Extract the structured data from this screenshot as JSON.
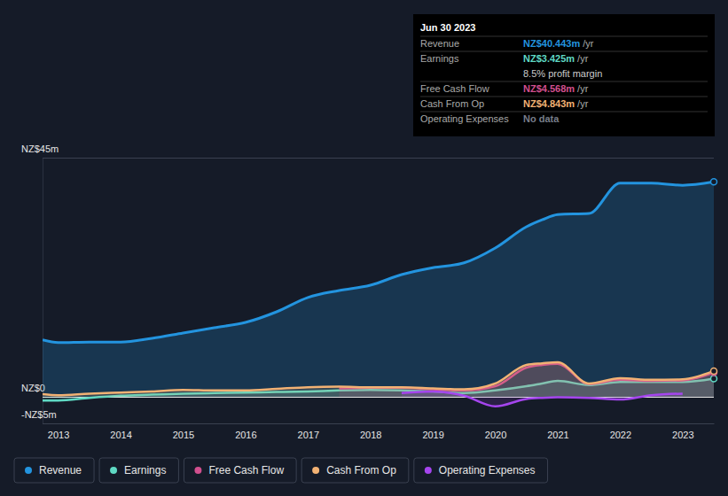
{
  "chart_data": {
    "type": "line",
    "x": [
      2012.75,
      2013,
      2013.5,
      2014,
      2014.5,
      2015,
      2015.5,
      2016,
      2016.5,
      2017,
      2017.5,
      2018,
      2018.5,
      2019,
      2019.5,
      2020,
      2020.5,
      2020.75,
      2021,
      2021.5,
      2022,
      2022.5,
      2023,
      2023.5
    ],
    "xlim": [
      2012.75,
      2023.5
    ],
    "xticks": [
      2013,
      2014,
      2015,
      2016,
      2017,
      2018,
      2019,
      2020,
      2021,
      2022,
      2023
    ],
    "ylim": [
      -5,
      45
    ],
    "yticks": [
      {
        "value": -5,
        "label": "-NZ$5m"
      },
      {
        "value": 0,
        "label": "NZ$0"
      },
      {
        "value": 45,
        "label": "NZ$45m"
      }
    ],
    "grid": true,
    "legend": "bottom",
    "series": [
      {
        "name": "Revenue",
        "color": "#2394df",
        "values": [
          10.7,
          10.2,
          10.3,
          10.3,
          11.0,
          12.0,
          13.0,
          14.0,
          16.0,
          18.7,
          20.0,
          21.0,
          23.0,
          24.3,
          25.2,
          28.0,
          32.0,
          33.3,
          34.3,
          34.5,
          40.2,
          40.2,
          39.8,
          40.443
        ]
      },
      {
        "name": "Earnings",
        "color": "#5fd9c4",
        "values": [
          -0.7,
          -0.7,
          -0.2,
          0.2,
          0.4,
          0.6,
          0.7,
          0.8,
          0.9,
          1.0,
          1.2,
          1.3,
          1.2,
          1.0,
          0.7,
          1.2,
          2.0,
          2.5,
          3.0,
          2.2,
          2.8,
          2.8,
          2.8,
          3.425
        ]
      },
      {
        "name": "Free Cash Flow",
        "color": "#d14f8e",
        "values": [
          null,
          null,
          null,
          null,
          null,
          null,
          null,
          null,
          null,
          null,
          1.6,
          1.7,
          1.7,
          1.4,
          1.2,
          2.0,
          5.5,
          6.0,
          6.2,
          2.4,
          3.2,
          3.0,
          3.1,
          4.568
        ]
      },
      {
        "name": "Cash From Op",
        "color": "#f2b274",
        "values": [
          0.5,
          0.3,
          0.6,
          0.8,
          1.0,
          1.3,
          1.2,
          1.2,
          1.5,
          1.8,
          1.9,
          1.8,
          1.8,
          1.6,
          1.4,
          2.5,
          6.0,
          6.3,
          6.5,
          2.5,
          3.5,
          3.2,
          3.3,
          4.843
        ]
      },
      {
        "name": "Operating Expenses",
        "color": "#a545ee",
        "values": [
          null,
          null,
          null,
          null,
          null,
          null,
          null,
          null,
          null,
          null,
          null,
          null,
          0.7,
          1.0,
          0.2,
          -1.8,
          -0.4,
          -0.2,
          -0.1,
          -0.2,
          -0.5,
          0.3,
          0.6,
          null
        ]
      }
    ],
    "annotations": {
      "date": "Jun 30 2023",
      "rows": [
        {
          "label": "Revenue",
          "value": "NZ$40.443m",
          "unit": "/yr",
          "color": "#2394df"
        },
        {
          "label": "Earnings",
          "value": "NZ$3.425m",
          "unit": "/yr",
          "color": "#5fd9c4",
          "note": "8.5% profit margin"
        },
        {
          "label": "Free Cash Flow",
          "value": "NZ$4.568m",
          "unit": "/yr",
          "color": "#d14f8e"
        },
        {
          "label": "Cash From Op",
          "value": "NZ$4.843m",
          "unit": "/yr",
          "color": "#f2b274"
        },
        {
          "label": "Operating Expenses",
          "value": "No data",
          "color": "#777e8a"
        }
      ]
    }
  }
}
